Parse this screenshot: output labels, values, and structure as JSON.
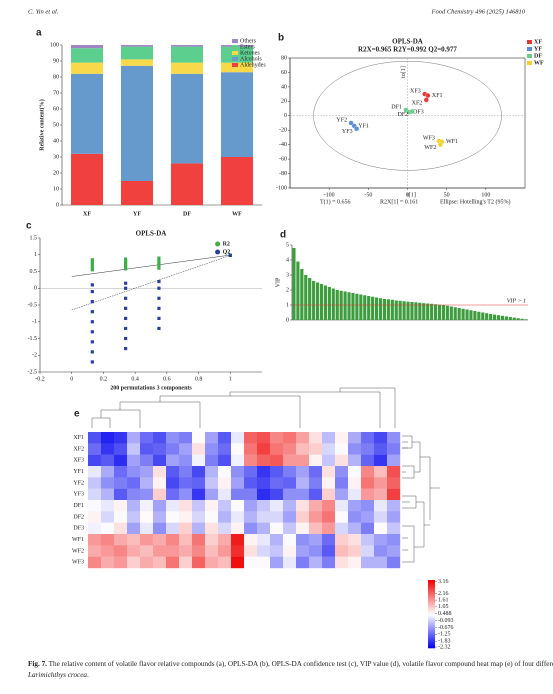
{
  "header": {
    "left": "C. Yin et al.",
    "right": "Food Chemistry 496 (2025) 146810"
  },
  "caption": {
    "lead": "Fig. 7.",
    "text": "The relative content of volatile flavor relative compounds (a), OPLS-DA (b), OPLS-DA confidence test (c), VIP value (d), volatile flavor compound heat map (e) of four different treatments of",
    "species": "Larimichthys crocea",
    "end": "."
  },
  "chart_data": [
    {
      "type": "bar",
      "stacked": true,
      "panel": "a",
      "ylabel": "Relative content(%)",
      "categories": [
        "XF",
        "YF",
        "DF",
        "WF"
      ],
      "series": [
        {
          "name": "Aldehydes",
          "color": "#f0413f",
          "values": [
            32,
            15,
            26,
            30
          ]
        },
        {
          "name": "Alcohols",
          "color": "#6699cc",
          "values": [
            50,
            72,
            56,
            53
          ]
        },
        {
          "name": "Ketones",
          "color": "#f9d84a",
          "values": [
            7,
            4,
            7,
            6
          ]
        },
        {
          "name": "Esters",
          "color": "#5ccf8e",
          "values": [
            9,
            8,
            10,
            10
          ]
        },
        {
          "name": "Others",
          "color": "#a186c6",
          "values": [
            2,
            1,
            1,
            1
          ]
        }
      ],
      "ylim": [
        0,
        100
      ],
      "yticks": [
        0,
        10,
        20,
        30,
        40,
        50,
        60,
        70,
        80,
        90,
        100
      ]
    },
    {
      "type": "scatter",
      "panel": "b",
      "title": "OPLS-DA",
      "subtitle": "R2X=0.965  R2Y=0.992  Q2=0.977",
      "xlabel": "t[1]",
      "ylabel": "to[1]",
      "notes": [
        "T(1) = 0.656",
        "R2X[1] = 0.161",
        "Ellipse: Hotelling's T2 (95%)"
      ],
      "series": [
        {
          "name": "XF",
          "color": "#e53935",
          "x": [
            22,
            26,
            24
          ],
          "values": [
            30,
            28,
            22
          ],
          "point_labels": [
            "XF3",
            "XF1",
            "XF2"
          ]
        },
        {
          "name": "YF",
          "color": "#5b8ed6",
          "x": [
            -72,
            -68,
            -65
          ],
          "values": [
            -10,
            -14,
            -18
          ],
          "point_labels": [
            "YF2",
            "YF1",
            "YF3"
          ]
        },
        {
          "name": "DF",
          "color": "#66cc88",
          "x": [
            -2,
            2,
            6
          ],
          "values": [
            8,
            5,
            6
          ],
          "point_labels": [
            "DF1",
            "DF3",
            "DF2"
          ]
        },
        {
          "name": "WF",
          "color": "#f2d22e",
          "x": [
            40,
            44,
            42
          ],
          "values": [
            -35,
            -36,
            -40
          ],
          "point_labels": [
            "WF3",
            "WF1",
            "WF2"
          ]
        }
      ],
      "xlim": [
        -150,
        150
      ],
      "xticks": [
        -100,
        -50,
        0,
        50,
        100
      ],
      "ylim": [
        -100,
        80
      ],
      "yticks": [
        -100,
        -80,
        -60,
        -40,
        -20,
        0,
        20,
        40,
        60,
        80
      ]
    },
    {
      "type": "scatter",
      "panel": "c",
      "title": "OPLS-DA",
      "xlabel": "200 permutations 3 components",
      "series": [
        {
          "name": "R2",
          "color": "#3fae49",
          "x": [
            0.13,
            0.13,
            0.13,
            0.13,
            0.13,
            0.34,
            0.34,
            0.34,
            0.34,
            0.34,
            0.55,
            0.55,
            0.55,
            0.55,
            0.55,
            1
          ],
          "values": [
            0.55,
            0.62,
            0.7,
            0.78,
            0.85,
            0.58,
            0.65,
            0.72,
            0.8,
            0.87,
            0.6,
            0.68,
            0.75,
            0.82,
            0.9,
            0.99
          ],
          "trend": {
            "x": [
              0,
              1
            ],
            "values": [
              0.35,
              0.99
            ]
          }
        },
        {
          "name": "Q2",
          "color": "#2b3f9c",
          "x": [
            0.13,
            0.13,
            0.13,
            0.13,
            0.13,
            0.13,
            0.13,
            0.13,
            0.13,
            0.34,
            0.34,
            0.34,
            0.34,
            0.34,
            0.34,
            0.34,
            0.34,
            0.55,
            0.55,
            0.55,
            0.55,
            0.55,
            0.55,
            1
          ],
          "values": [
            -2.2,
            -1.9,
            -1.6,
            -1.3,
            -1.0,
            -0.7,
            -0.4,
            -0.1,
            0.1,
            -1.8,
            -1.5,
            -1.2,
            -0.9,
            -0.6,
            -0.3,
            0,
            0.15,
            -1.2,
            -0.9,
            -0.6,
            -0.3,
            0,
            0.2,
            0.98
          ],
          "trend": {
            "x": [
              0,
              1
            ],
            "values": [
              -0.65,
              0.98
            ]
          }
        }
      ],
      "xlim": [
        -0.2,
        1.2
      ],
      "xticks": [
        -0.2,
        0,
        0.2,
        0.4,
        0.6,
        0.8,
        1
      ],
      "ylim": [
        -2.5,
        1.5
      ],
      "yticks": [
        -2.5,
        -2,
        -1.5,
        -1,
        -0.5,
        0,
        0.5,
        1,
        1.5
      ]
    },
    {
      "type": "bar",
      "panel": "d",
      "ylabel": "VIP",
      "color": "#3d9c3d",
      "threshold": {
        "value": 1,
        "label": "VIP > 1"
      },
      "values": [
        4.8,
        3.9,
        3.4,
        3.0,
        2.8,
        2.6,
        2.5,
        2.4,
        2.3,
        2.2,
        2.1,
        2.0,
        1.95,
        1.9,
        1.85,
        1.8,
        1.75,
        1.7,
        1.65,
        1.6,
        1.55,
        1.5,
        1.45,
        1.4,
        1.38,
        1.35,
        1.3,
        1.28,
        1.25,
        1.22,
        1.2,
        1.18,
        1.15,
        1.12,
        1.1,
        1.08,
        1.05,
        1.02,
        1.0,
        0.95,
        0.9,
        0.85,
        0.8,
        0.75,
        0.7,
        0.65,
        0.6,
        0.55,
        0.5,
        0.45,
        0.4,
        0.36,
        0.32,
        0.28,
        0.24,
        0.2,
        0.16,
        0.12,
        0.08,
        0.05
      ],
      "ylim": [
        0,
        5
      ],
      "yticks": [
        0,
        1,
        2,
        3,
        4,
        5
      ]
    },
    {
      "type": "heatmap",
      "panel": "e",
      "rows": [
        "XF1",
        "XF2",
        "XF3",
        "YF1",
        "YF2",
        "YF3",
        "DF1",
        "DF2",
        "DF3",
        "WF1",
        "WF2",
        "WF3"
      ],
      "colors": [
        "#0000ee",
        "#ffffff",
        "#ee0000"
      ],
      "zlim": [
        -2.4,
        3.3
      ],
      "zticks": [
        3.16,
        2.16,
        1.61,
        1.05,
        0.488,
        -0.093,
        -0.676,
        -1.25,
        -1.83,
        -2.32
      ],
      "values": [
        [
          -1.5,
          -2,
          -1.8,
          -0.5,
          -1.2,
          -1.5,
          -0.8,
          -1,
          0.5,
          -0.6,
          -1.4,
          0.2,
          2.2,
          2.4,
          1.8,
          2.0,
          1.5,
          0.8,
          -0.3,
          0.6,
          -0.5,
          -1.2,
          -1.6,
          -0.8
        ],
        [
          -1.2,
          -1.8,
          -1.5,
          -0.2,
          -1.4,
          -1.3,
          -1.0,
          -0.6,
          0.8,
          -0.8,
          -1.2,
          0.5,
          2.0,
          2.6,
          2.0,
          1.8,
          1.2,
          1.0,
          0,
          0.4,
          -0.8,
          -1,
          -1.4,
          -1
        ],
        [
          -1.6,
          -1.4,
          -1.9,
          -0.6,
          -1.0,
          -1.6,
          -0.6,
          -0.8,
          0.3,
          -1,
          -1.5,
          0.3,
          1.8,
          2.2,
          2.3,
          1.6,
          1.6,
          0.6,
          -0.2,
          0.8,
          -0.4,
          -1.3,
          -1.8,
          -0.6
        ],
        [
          0.2,
          -0.5,
          -1.2,
          -0.8,
          -0.6,
          0.8,
          -1.4,
          -1.0,
          -1.6,
          -0.4,
          0.4,
          -0.8,
          -1.2,
          -1.8,
          -1.4,
          -1.0,
          -0.6,
          -1.2,
          0.8,
          -0.8,
          0.4,
          1.8,
          1.2,
          2.4
        ],
        [
          -0.2,
          -0.8,
          -1.0,
          -1.2,
          -0.4,
          0.6,
          -1.6,
          -1.2,
          -1.3,
          -0.2,
          0.6,
          -0.6,
          -1.4,
          -1.6,
          -1.2,
          -1.3,
          -0.4,
          -1.0,
          0.6,
          -1.0,
          0.6,
          2.0,
          1.6,
          2.2
        ],
        [
          0,
          -0.4,
          -1.4,
          -0.9,
          -0.8,
          1.0,
          -1.2,
          -0.8,
          -1.8,
          -0.6,
          0.2,
          -1.0,
          -1.0,
          -1.9,
          -1.6,
          -0.8,
          -0.8,
          -1.4,
          1.0,
          -0.6,
          0.2,
          1.6,
          1.4,
          2.6
        ],
        [
          0.4,
          0.2,
          0.6,
          -0.4,
          0.3,
          -0.6,
          0.2,
          0.8,
          -0.2,
          0.6,
          -0.2,
          0.4,
          -0.6,
          -0.2,
          0.2,
          -0.4,
          0.8,
          1.4,
          1.8,
          0.2,
          -0.6,
          -0.8,
          0.2,
          -0.4
        ],
        [
          0.6,
          0,
          0.4,
          -0.2,
          0.5,
          -0.4,
          0.4,
          0.6,
          0,
          0.4,
          -0.4,
          0.2,
          -0.4,
          0,
          0,
          -0.6,
          1.0,
          1.6,
          2.0,
          0.4,
          -0.8,
          -0.6,
          0,
          -0.6
        ],
        [
          0.3,
          0.4,
          0.8,
          -0.6,
          0.2,
          -0.8,
          0,
          1.0,
          -0.4,
          0.8,
          0,
          0.6,
          -0.8,
          -0.4,
          0.4,
          -0.2,
          0.6,
          1.2,
          1.6,
          0,
          -0.4,
          -1.0,
          0.4,
          -0.2
        ],
        [
          1.6,
          1.8,
          1.4,
          1.2,
          1.6,
          1.4,
          1.8,
          1.2,
          2.0,
          1.0,
          1.4,
          3.0,
          0.6,
          0.2,
          -0.4,
          0.4,
          -0.8,
          -0.6,
          -1.2,
          1.0,
          0.8,
          -0.2,
          -0.6,
          -0.8
        ],
        [
          1.4,
          1.6,
          1.8,
          1.4,
          1.2,
          1.6,
          1.6,
          1.4,
          1.8,
          1.2,
          1.6,
          2.8,
          0.8,
          0,
          -0.2,
          0.6,
          -0.6,
          -0.8,
          -1.4,
          1.2,
          1.0,
          0,
          -0.8,
          -0.6
        ],
        [
          1.8,
          1.4,
          1.6,
          1.0,
          1.4,
          1.2,
          2.0,
          1.0,
          2.2,
          1.4,
          1.2,
          3.16,
          0.4,
          0.4,
          -0.6,
          0.2,
          -1.0,
          -0.4,
          -1.0,
          0.8,
          0.6,
          -0.4,
          -0.4,
          -1.0
        ]
      ]
    }
  ]
}
